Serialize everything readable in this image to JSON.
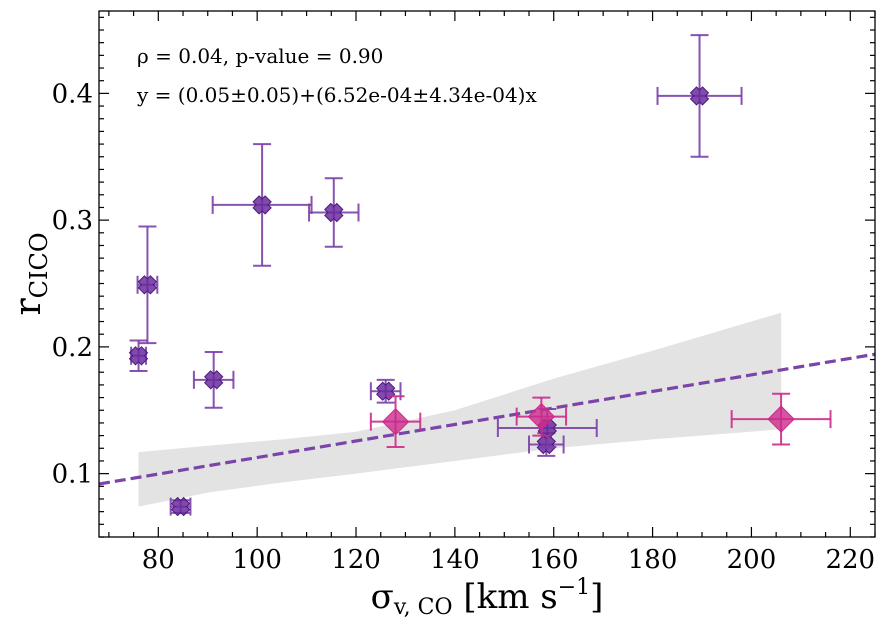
{
  "chart_data": {
    "type": "scatter",
    "title": "",
    "xlabel": {
      "main": "σ",
      "sub": "v, CO",
      "rest": " [km s",
      "sup": "−1",
      "end": "]"
    },
    "ylabel": {
      "main": "r",
      "sub": "CICO"
    },
    "xlim": [
      68,
      225
    ],
    "ylim": [
      0.05,
      0.465
    ],
    "xticks": [
      80,
      100,
      120,
      140,
      160,
      180,
      200,
      220
    ],
    "xtick_labels": [
      "80",
      "100",
      "120",
      "140",
      "160",
      "180",
      "200",
      "220"
    ],
    "yticks": [
      0.1,
      0.2,
      0.3,
      0.4
    ],
    "ytick_labels": [
      "0.1",
      "0.2",
      "0.3",
      "0.4"
    ],
    "annotations": [
      "ρ = 0.04, p-value = 0.90",
      "y = (0.05±0.05)+(6.52e-04±4.34e-04)x"
    ],
    "colors": {
      "cross": "#6a2c9e",
      "cross_err": "#7b3fa8",
      "diamond": "#cc2a8c",
      "band": "#e3e3e3",
      "fit": "#7a44a8"
    },
    "fit": {
      "intercept": 0.0475,
      "slope": 0.000652
    },
    "band": {
      "x": [
        76,
        90,
        105,
        120,
        140,
        160,
        180,
        206
      ],
      "upper": [
        0.117,
        0.122,
        0.127,
        0.133,
        0.15,
        0.175,
        0.197,
        0.227
      ],
      "lower": [
        0.074,
        0.085,
        0.093,
        0.1,
        0.11,
        0.12,
        0.127,
        0.135
      ]
    },
    "series": [
      {
        "name": "crosses",
        "marker": "x",
        "points": [
          {
            "x": 76,
            "y": 0.193,
            "xerr": 1.5,
            "yerr": 0.012
          },
          {
            "x": 77.8,
            "y": 0.249,
            "xerr": 2.0,
            "yerr": 0.046
          },
          {
            "x": 84.5,
            "y": 0.074,
            "xerr": 2.0,
            "yerr": 0.005
          },
          {
            "x": 91.2,
            "y": 0.174,
            "xerr": 4.0,
            "yerr": 0.022
          },
          {
            "x": 101,
            "y": 0.312,
            "xerr": 10.0,
            "yerr": 0.048
          },
          {
            "x": 115.5,
            "y": 0.306,
            "xerr": 5.0,
            "yerr": 0.027
          },
          {
            "x": 126,
            "y": 0.165,
            "xerr": 3.0,
            "yerr": 0.009
          },
          {
            "x": 158.5,
            "y": 0.123,
            "xerr": 3.5,
            "yerr": 0.009
          },
          {
            "x": 158.7,
            "y": 0.136,
            "xerr": 10.0,
            "yerr": 0.015
          },
          {
            "x": 189.5,
            "y": 0.398,
            "xerr": 8.5,
            "yerr": 0.048
          }
        ]
      },
      {
        "name": "diamonds",
        "marker": "D",
        "points": [
          {
            "x": 128,
            "y": 0.141,
            "xerr": 5.0,
            "yerr": 0.02
          },
          {
            "x": 157.5,
            "y": 0.145,
            "xerr": 5.0,
            "yerr": 0.015
          },
          {
            "x": 206,
            "y": 0.143,
            "xerr": 10.0,
            "yerr": 0.02
          }
        ]
      }
    ]
  }
}
